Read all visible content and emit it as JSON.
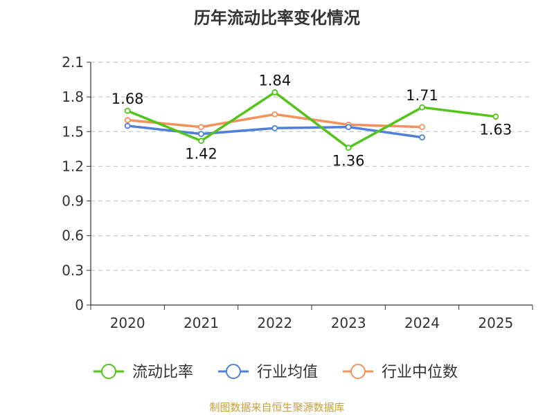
{
  "chart_data": {
    "type": "line",
    "title": "历年流动比率变化情况",
    "categories": [
      "2020",
      "2021",
      "2022",
      "2023",
      "2024",
      "2025"
    ],
    "y_ticks": [
      "0",
      "0.3",
      "0.6",
      "0.9",
      "1.2",
      "1.5",
      "1.8",
      "2.1"
    ],
    "ylim": [
      0,
      2.1
    ],
    "grid": true,
    "legend_position": "bottom",
    "series": [
      {
        "name": "流动比率",
        "color": "#52c41a",
        "values": [
          1.68,
          1.42,
          1.84,
          1.36,
          1.71,
          1.63
        ],
        "labels": [
          "1.68",
          "1.42",
          "1.84",
          "1.36",
          "1.71",
          "1.63"
        ]
      },
      {
        "name": "行业均值",
        "color": "#4e7fdb",
        "values": [
          1.55,
          1.48,
          1.53,
          1.54,
          1.45,
          null
        ]
      },
      {
        "name": "行业中位数",
        "color": "#f5915a",
        "values": [
          1.6,
          1.54,
          1.65,
          1.56,
          1.54,
          null
        ]
      }
    ]
  },
  "source": "制图数据来自恒生聚源数据库"
}
